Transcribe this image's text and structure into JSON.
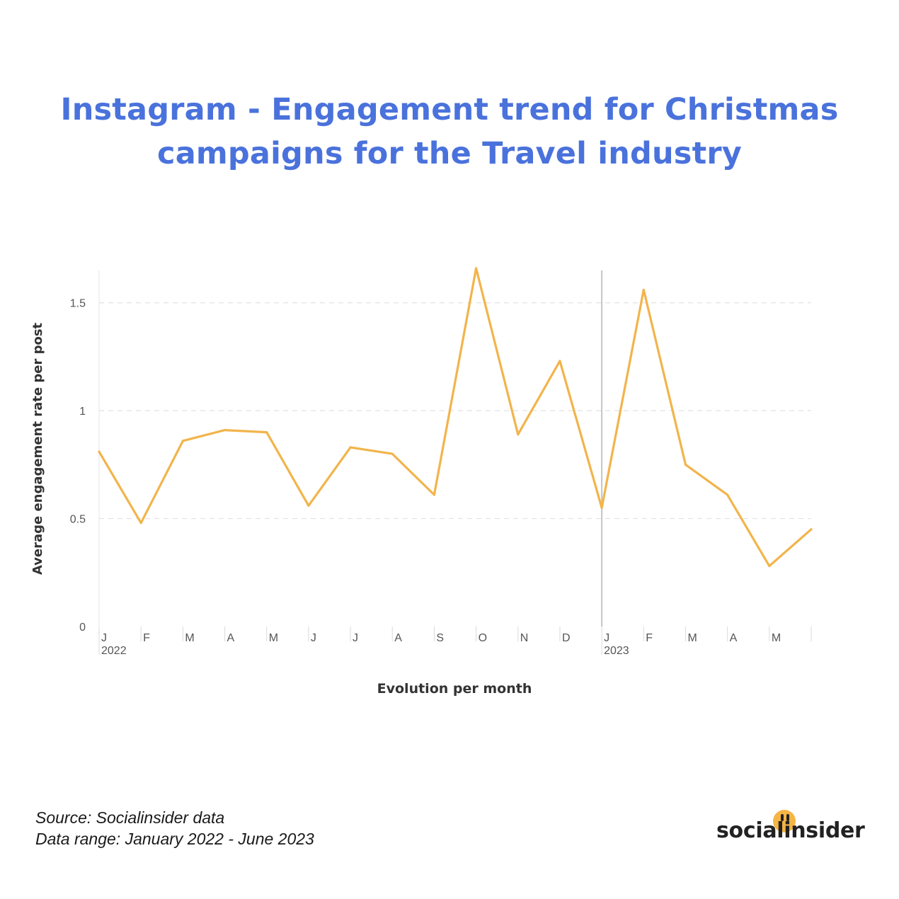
{
  "title_line1": "Instagram - Engagement trend for Christmas",
  "title_line2": "campaigns for the Travel industry",
  "footer": {
    "source": "Source: Socialinsider data",
    "range": "Data range: January 2022 - June 2023"
  },
  "logo": "socialinsider",
  "colors": {
    "title": "#4a72dc",
    "line": "#f2b44b",
    "logo_dot": "#f4b545",
    "axis_text": "#555555",
    "grid": "#e2e2e2"
  },
  "chart_data": {
    "type": "line",
    "title": "Instagram - Engagement trend for Christmas campaigns for the Travel industry",
    "xlabel": "Evolution per month",
    "ylabel": "Average engagement rate per post",
    "ylim": [
      0,
      1.65
    ],
    "yticks": [
      0,
      0.5,
      1,
      1.5
    ],
    "ytick_labels": [
      "0",
      "0.5",
      "1",
      "1.5"
    ],
    "grid": true,
    "year_labels": [
      {
        "label": "2022",
        "index": 0
      },
      {
        "label": "2023",
        "index": 12
      }
    ],
    "month_labels": [
      "J",
      "F",
      "M",
      "A",
      "M",
      "J",
      "J",
      "A",
      "S",
      "O",
      "N",
      "D",
      "J",
      "F",
      "M",
      "A",
      "M",
      ""
    ],
    "x": [
      "2022-01",
      "2022-02",
      "2022-03",
      "2022-04",
      "2022-05",
      "2022-06",
      "2022-07",
      "2022-08",
      "2022-09",
      "2022-10",
      "2022-11",
      "2022-12",
      "2023-01",
      "2023-02",
      "2023-03",
      "2023-04",
      "2023-05",
      "2023-06"
    ],
    "series": [
      {
        "values": [
          0.81,
          0.48,
          0.86,
          0.91,
          0.9,
          0.56,
          0.83,
          0.8,
          0.61,
          1.66,
          0.89,
          1.23,
          0.55,
          1.56,
          0.75,
          0.61,
          0.28,
          0.45
        ]
      }
    ]
  }
}
